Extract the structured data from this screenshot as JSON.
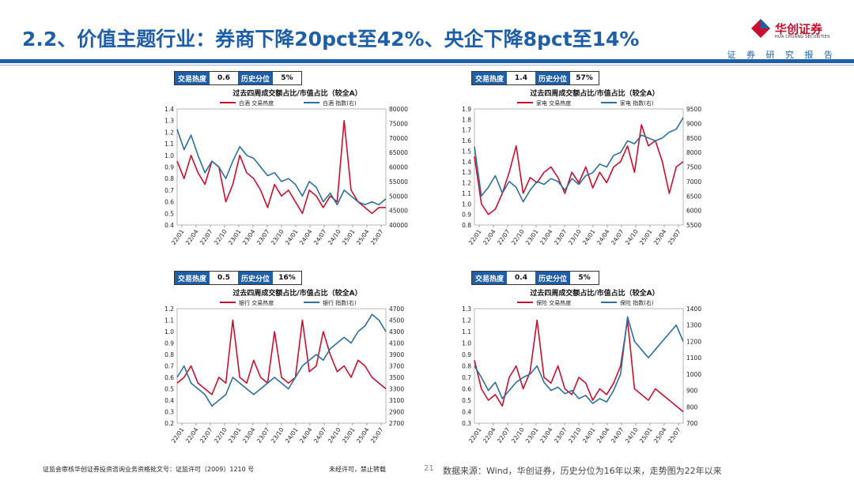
{
  "title": "2.2、价值主题行业：券商下降20pct至42%、央企下降8pct至14%",
  "brand": {
    "name_cn": "华创证券",
    "name_en": "HUA CHUANG SECURITIES",
    "tagline": "证 券 研 究 报 告"
  },
  "footer": {
    "license": "证监会审核华创证券投资咨询业务资格批文号：证监许可（2009）1210 号",
    "notice": "未经许可，禁止转载",
    "page": "21",
    "source": "数据来源：Wind，华创证券，历史分位为16年以来，走势图为22年以来"
  },
  "colors": {
    "heat": "#c8102e",
    "index": "#2e6f9e",
    "accent": "#1f5fa8"
  },
  "chart_data": [
    {
      "type": "line",
      "title": "过去四周成交额占比/市值占比（较全A）",
      "stats": {
        "heat_label": "交易热度",
        "heat_value": "0.6",
        "pct_label": "历史分位",
        "pct_value": "5%"
      },
      "legend": [
        "白酒 交易热度",
        "白酒 指数(右)"
      ],
      "x_ticks": [
        "22/01",
        "22/04",
        "22/07",
        "22/10",
        "23/01",
        "23/04",
        "23/07",
        "23/10",
        "24/01",
        "24/04",
        "24/07",
        "24/10",
        "25/01",
        "25/04",
        "25/07"
      ],
      "y_left_ticks": [
        "1.4",
        "1.3",
        "1.2",
        "1.1",
        "1.0",
        "0.9",
        "0.8",
        "0.7",
        "0.6",
        "0.5",
        "0.4"
      ],
      "y_right_ticks": [
        "80000",
        "75000",
        "70000",
        "65000",
        "60000",
        "55000",
        "50000",
        "45000",
        "40000"
      ],
      "ylim": [
        0.4,
        1.4
      ],
      "y2lim": [
        40000,
        80000
      ],
      "series": [
        {
          "name": "白酒 交易热度",
          "axis": "left",
          "values": [
            0.95,
            0.8,
            1.0,
            0.85,
            0.75,
            0.95,
            0.9,
            0.6,
            0.75,
            1.0,
            0.85,
            0.8,
            0.7,
            0.55,
            0.75,
            0.65,
            0.7,
            0.6,
            0.5,
            0.7,
            0.65,
            0.55,
            0.65,
            0.6,
            1.3,
            0.7,
            0.6,
            0.55,
            0.5,
            0.55,
            0.55
          ]
        },
        {
          "name": "白酒 指数(右)",
          "axis": "right",
          "values": [
            73000,
            66000,
            71000,
            64000,
            58000,
            62000,
            60000,
            56000,
            62000,
            67000,
            64000,
            63000,
            60000,
            57000,
            58000,
            55000,
            56000,
            54000,
            50000,
            55000,
            53000,
            48000,
            51000,
            47000,
            52000,
            50000,
            48000,
            47000,
            48000,
            47000,
            49000
          ]
        }
      ]
    },
    {
      "type": "line",
      "title": "过去四周成交额占比/市值占比（较全A）",
      "stats": {
        "heat_label": "交易热度",
        "heat_value": "1.4",
        "pct_label": "历史分位",
        "pct_value": "57%"
      },
      "legend": [
        "家电 交易热度",
        "家电 指数(右)"
      ],
      "x_ticks": [
        "22/01",
        "22/04",
        "22/07",
        "22/10",
        "23/01",
        "23/04",
        "23/07",
        "23/10",
        "24/01",
        "24/04",
        "24/07",
        "24/10",
        "25/01",
        "25/04",
        "25/07"
      ],
      "y_left_ticks": [
        "1.9",
        "1.8",
        "1.7",
        "1.6",
        "1.5",
        "1.4",
        "1.3",
        "1.2",
        "1.1",
        "1.0",
        "0.9",
        "0.8"
      ],
      "y_right_ticks": [
        "9500",
        "9000",
        "8500",
        "8000",
        "7500",
        "7000",
        "6500",
        "6000",
        "5500"
      ],
      "ylim": [
        0.8,
        1.9
      ],
      "y2lim": [
        5500,
        9500
      ],
      "series": [
        {
          "name": "家电 交易热度",
          "axis": "left",
          "values": [
            1.45,
            1.0,
            0.9,
            0.95,
            1.1,
            1.3,
            1.55,
            1.1,
            1.25,
            1.2,
            1.3,
            1.35,
            1.25,
            1.1,
            1.3,
            1.2,
            1.35,
            1.15,
            1.3,
            1.2,
            1.35,
            1.4,
            1.55,
            1.3,
            1.75,
            1.55,
            1.6,
            1.4,
            1.1,
            1.35,
            1.4
          ]
        },
        {
          "name": "家电 指数(右)",
          "axis": "right",
          "values": [
            8200,
            6500,
            6800,
            7200,
            6600,
            7000,
            6800,
            6300,
            6700,
            7000,
            6900,
            7100,
            7000,
            6700,
            7100,
            6900,
            7200,
            7300,
            7600,
            7500,
            7900,
            8000,
            8400,
            8300,
            8600,
            8500,
            8400,
            8500,
            8700,
            8800,
            9200
          ]
        }
      ]
    },
    {
      "type": "line",
      "title": "过去四周成交额占比/市值占比（较全A）",
      "stats": {
        "heat_label": "交易热度",
        "heat_value": "0.5",
        "pct_label": "历史分位",
        "pct_value": "16%"
      },
      "legend": [
        "银行 交易热度",
        "银行 指数(右)"
      ],
      "x_ticks": [
        "22/01",
        "22/04",
        "22/07",
        "22/10",
        "23/01",
        "23/04",
        "23/07",
        "23/10",
        "24/01",
        "24/04",
        "24/07",
        "24/10",
        "25/01",
        "25/04",
        "25/07"
      ],
      "y_left_ticks": [
        "1.2",
        "1.1",
        "1.0",
        "0.9",
        "0.8",
        "0.7",
        "0.6",
        "0.5",
        "0.4",
        "0.3",
        "0.2"
      ],
      "y_right_ticks": [
        "4700",
        "4500",
        "4300",
        "4100",
        "3900",
        "3700",
        "3500",
        "3300",
        "3100",
        "2900",
        "2700"
      ],
      "ylim": [
        0.2,
        1.2
      ],
      "y2lim": [
        2700,
        4700
      ],
      "series": [
        {
          "name": "银行 交易热度",
          "axis": "left",
          "values": [
            0.55,
            0.6,
            0.7,
            0.55,
            0.5,
            0.45,
            0.6,
            0.55,
            1.1,
            0.6,
            0.55,
            0.75,
            0.6,
            0.55,
            1.0,
            0.6,
            0.55,
            0.6,
            1.1,
            0.65,
            0.7,
            1.0,
            0.8,
            0.65,
            0.7,
            0.6,
            0.75,
            0.7,
            0.6,
            0.55,
            0.5
          ]
        },
        {
          "name": "银行 指数(右)",
          "axis": "right",
          "values": [
            3500,
            3700,
            3400,
            3300,
            3200,
            3000,
            3100,
            3200,
            3500,
            3400,
            3300,
            3200,
            3300,
            3400,
            3500,
            3400,
            3300,
            3500,
            3700,
            3800,
            3900,
            3800,
            4000,
            4100,
            4200,
            4100,
            4300,
            4400,
            4600,
            4500,
            4300
          ]
        }
      ]
    },
    {
      "type": "line",
      "title": "过去四周成交额占比/市值占比（较全A）",
      "stats": {
        "heat_label": "交易热度",
        "heat_value": "0.4",
        "pct_label": "历史分位",
        "pct_value": "5%"
      },
      "legend": [
        "保险 交易热度",
        "保险 指数(右)"
      ],
      "x_ticks": [
        "22/01",
        "22/04",
        "22/07",
        "22/10",
        "23/01",
        "23/04",
        "23/07",
        "23/10",
        "24/01",
        "24/04",
        "24/07",
        "24/10",
        "25/01",
        "25/04",
        "25/07"
      ],
      "y_left_ticks": [
        "1.3",
        "1.2",
        "1.1",
        "1.0",
        "0.9",
        "0.8",
        "0.7",
        "0.6",
        "0.5",
        "0.4",
        "0.3"
      ],
      "y_right_ticks": [
        "1400",
        "1300",
        "1200",
        "1100",
        "1000",
        "900",
        "800",
        "700"
      ],
      "ylim": [
        0.3,
        1.3
      ],
      "y2lim": [
        700,
        1400
      ],
      "series": [
        {
          "name": "保险 交易热度",
          "axis": "left",
          "values": [
            0.85,
            0.6,
            0.5,
            0.55,
            0.45,
            0.7,
            0.8,
            0.6,
            0.75,
            1.2,
            0.7,
            0.65,
            0.8,
            0.6,
            0.55,
            0.7,
            0.65,
            0.5,
            0.6,
            0.55,
            0.65,
            0.8,
            1.2,
            0.6,
            0.55,
            0.5,
            0.6,
            0.55,
            0.5,
            0.45,
            0.4
          ]
        },
        {
          "name": "保险 指数(右)",
          "axis": "right",
          "values": [
            1050,
            980,
            900,
            950,
            850,
            900,
            950,
            980,
            1000,
            1050,
            950,
            900,
            920,
            880,
            900,
            850,
            870,
            820,
            850,
            830,
            900,
            1000,
            1350,
            1200,
            1150,
            1100,
            1150,
            1200,
            1250,
            1300,
            1200
          ]
        }
      ]
    }
  ]
}
